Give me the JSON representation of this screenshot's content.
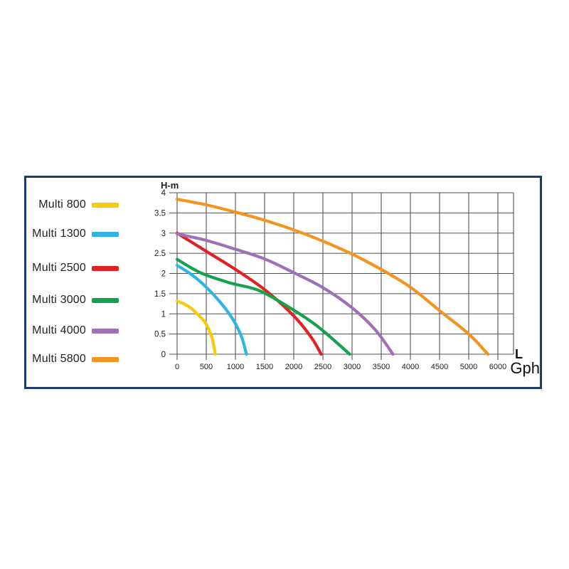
{
  "panel": {
    "border_color": "#1d3c6e",
    "background": "#ffffff",
    "gridline_color": "#515151",
    "text_color": "#1d1d1d"
  },
  "labels": {
    "y_axis_unit": "H-m",
    "x_axis_unit_line1": "L",
    "x_axis_unit_line2": "Gph"
  },
  "chart_data": {
    "type": "line",
    "title": "",
    "ylabel": "H-m",
    "xlabel": "L / Gph",
    "grid": "on",
    "legend_position": "left",
    "ylim": [
      0,
      4
    ],
    "y_tick_step": 0.5,
    "y_tick_labels": [
      "4",
      "3.5",
      "3",
      "2.5",
      "2",
      "1.5",
      "1",
      "0.5",
      "0"
    ],
    "x_tick_labels": [
      "0",
      "500",
      "1000",
      "1500",
      "2000",
      "2500",
      "3000",
      "3500",
      "4000",
      "4500",
      "5000",
      "6000"
    ],
    "x_tick_step_position": 500,
    "axis_note": "x ticks are uniformly spaced; the last tick is labeled 6000 but sits one 500-wide step after 5000",
    "series": [
      {
        "name": "Multi 800",
        "color": "#F7CA0C",
        "points": [
          [
            0,
            1.32
          ],
          [
            200,
            1.18
          ],
          [
            400,
            0.92
          ],
          [
            500,
            0.74
          ],
          [
            600,
            0.4
          ],
          [
            655,
            0
          ]
        ]
      },
      {
        "name": "Multi 1300",
        "color": "#2FB4E7",
        "points": [
          [
            0,
            2.2
          ],
          [
            250,
            1.97
          ],
          [
            500,
            1.66
          ],
          [
            750,
            1.27
          ],
          [
            950,
            0.88
          ],
          [
            1100,
            0.45
          ],
          [
            1190,
            0
          ]
        ]
      },
      {
        "name": "Multi 2500",
        "color": "#E02227",
        "points": [
          [
            0,
            3.0
          ],
          [
            500,
            2.55
          ],
          [
            1000,
            2.1
          ],
          [
            1500,
            1.6
          ],
          [
            2000,
            0.95
          ],
          [
            2300,
            0.42
          ],
          [
            2470,
            0
          ]
        ]
      },
      {
        "name": "Multi 3000",
        "color": "#16A14E",
        "points": [
          [
            0,
            2.35
          ],
          [
            400,
            2.02
          ],
          [
            900,
            1.77
          ],
          [
            1400,
            1.58
          ],
          [
            1900,
            1.18
          ],
          [
            2400,
            0.7
          ],
          [
            2960,
            0
          ]
        ]
      },
      {
        "name": "Multi 4000",
        "color": "#9F6FB8",
        "points": [
          [
            0,
            2.98
          ],
          [
            500,
            2.82
          ],
          [
            1000,
            2.6
          ],
          [
            1500,
            2.36
          ],
          [
            2000,
            2.02
          ],
          [
            2500,
            1.65
          ],
          [
            3000,
            1.15
          ],
          [
            3400,
            0.6
          ],
          [
            3700,
            0
          ]
        ]
      },
      {
        "name": "Multi 5800",
        "color": "#F2941F",
        "points": [
          [
            0,
            3.84
          ],
          [
            500,
            3.7
          ],
          [
            1000,
            3.52
          ],
          [
            1500,
            3.32
          ],
          [
            2000,
            3.08
          ],
          [
            2500,
            2.8
          ],
          [
            3000,
            2.48
          ],
          [
            3500,
            2.1
          ],
          [
            4000,
            1.66
          ],
          [
            4500,
            1.08
          ],
          [
            5000,
            0.5
          ],
          [
            5330,
            0
          ]
        ]
      }
    ]
  }
}
